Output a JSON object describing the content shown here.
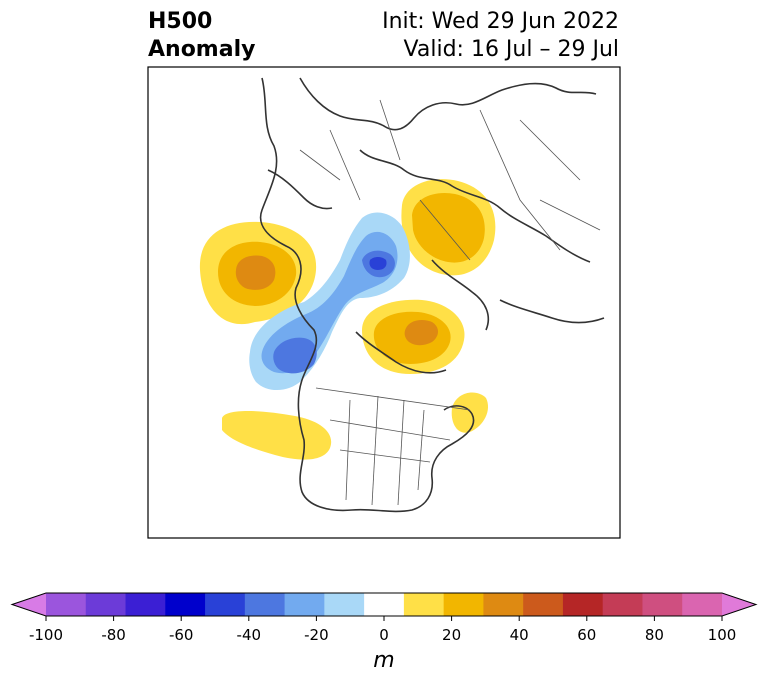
{
  "title": {
    "left_line1": "H500",
    "left_line2": "Anomaly",
    "right_line1": "Init: Wed 29 Jun 2022",
    "right_line2": "Valid: 16 Jul – 29 Jul"
  },
  "colorbar": {
    "unit_label": "m",
    "ticks": [
      "-100",
      "-80",
      "-60",
      "-40",
      "-20",
      "0",
      "20",
      "40",
      "60",
      "80",
      "100"
    ],
    "min": -100,
    "max": 100,
    "extend": "both",
    "colors": [
      "#d87be6",
      "#9b55dd",
      "#6c3bd8",
      "#3b1fd4",
      "#0000cc",
      "#2941d7",
      "#4d77e0",
      "#72aaef",
      "#a9d8f7",
      "#ffffff",
      "#ffe047",
      "#f2b600",
      "#de8a12",
      "#cc5a1c",
      "#b52626",
      "#c43c56",
      "#cf4f80",
      "#da65b0",
      "#e07ad9"
    ]
  },
  "map": {
    "projection": "north-polar-stereographic",
    "region": "North America and Arctic",
    "field": "500 hPa geopotential height anomaly"
  }
}
